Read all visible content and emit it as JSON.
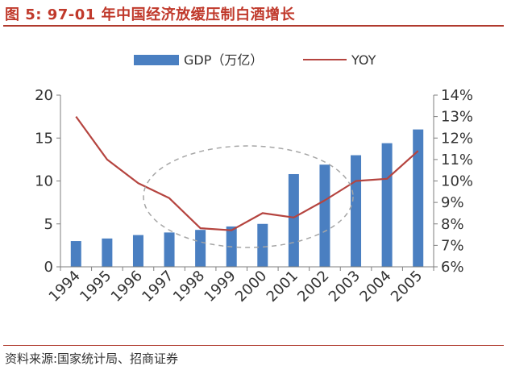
{
  "figure": {
    "title": "图 5:  97-01 年中国经济放缓压制白酒增长",
    "source": "资料来源:国家统计局、招商证券"
  },
  "colors": {
    "title": "#c0392b",
    "bar": "#4a7fc1",
    "line": "#b5443f",
    "ellipse": "#a6a6a6"
  },
  "chart_data": {
    "type": "bar",
    "title": "",
    "categories": [
      "1994",
      "1995",
      "1996",
      "1997",
      "1998",
      "1999",
      "2000",
      "2001",
      "2002",
      "2003",
      "2004",
      "2005"
    ],
    "series": [
      {
        "name": "GDP（万亿）",
        "type": "bar",
        "axis": "left",
        "values": [
          3.0,
          3.3,
          3.7,
          4.0,
          4.3,
          4.7,
          5.0,
          10.8,
          11.9,
          13.0,
          14.4,
          16.0
        ]
      },
      {
        "name": "YOY",
        "type": "line",
        "axis": "right",
        "values": [
          13.0,
          11.0,
          9.9,
          9.2,
          7.8,
          7.7,
          8.5,
          8.3,
          9.1,
          10.0,
          10.1,
          11.4
        ]
      }
    ],
    "y_left": {
      "ylim": [
        0,
        20
      ],
      "ticks": [
        "0",
        "5",
        "10",
        "15",
        "20"
      ],
      "tick_values": [
        0,
        5,
        10,
        15,
        20
      ]
    },
    "y_right": {
      "ylim": [
        6,
        14
      ],
      "ticks": [
        "6%",
        "7%",
        "8%",
        "9%",
        "10%",
        "11%",
        "12%",
        "13%",
        "14%"
      ],
      "tick_values": [
        6,
        7,
        8,
        9,
        10,
        11,
        12,
        13,
        14
      ]
    },
    "legend": {
      "position": "top",
      "bar_label": "GDP（万亿）",
      "line_label": "YOY"
    },
    "annotation": "dashed ellipse highlighting 1997-2001"
  }
}
